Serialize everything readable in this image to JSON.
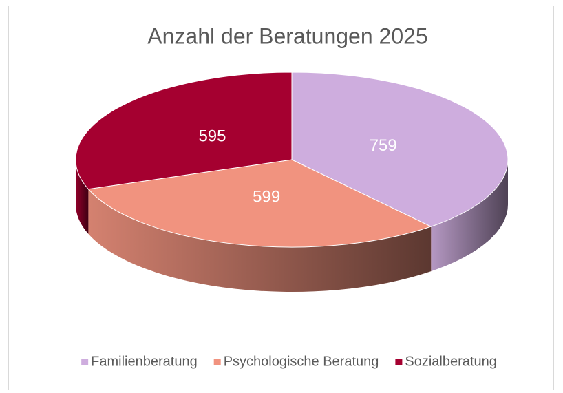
{
  "chart_data": {
    "type": "pie",
    "title": "Anzahl der Beratungen 2025",
    "categories": [
      "Familienberatung",
      "Psychologische Beratung",
      "Sozialberatung"
    ],
    "values": [
      759,
      599,
      595
    ],
    "colors": [
      "#ceadde",
      "#f1937f",
      "#a50030"
    ],
    "legend": "bottom"
  }
}
